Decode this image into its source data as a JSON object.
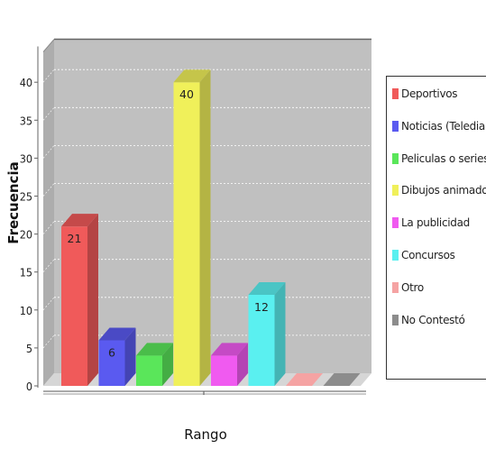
{
  "chart_data": {
    "type": "bar",
    "xlabel": "Rango",
    "ylabel": "Frecuencia",
    "ylim": [
      0,
      44
    ],
    "yticks": [
      0,
      5,
      10,
      15,
      20,
      25,
      30,
      35,
      40
    ],
    "grid": true,
    "legend_position": "right",
    "categories": [
      "Deportivos",
      "Noticias (Telediario)",
      "Peliculas o series",
      "Dibujos animados",
      "La publicidad",
      "Concursos",
      "Otro",
      "No Contestó"
    ],
    "values": [
      21,
      6,
      4,
      40,
      4,
      12,
      0,
      0
    ],
    "data_labels": [
      "21",
      "6",
      "",
      "40",
      "",
      "12",
      "",
      ""
    ],
    "colors": [
      "#f05a5a",
      "#5a5af0",
      "#5ae65a",
      "#f0f05a",
      "#f05af0",
      "#5af0f0",
      "#f5a3a3",
      "#8c8c8c"
    ]
  }
}
